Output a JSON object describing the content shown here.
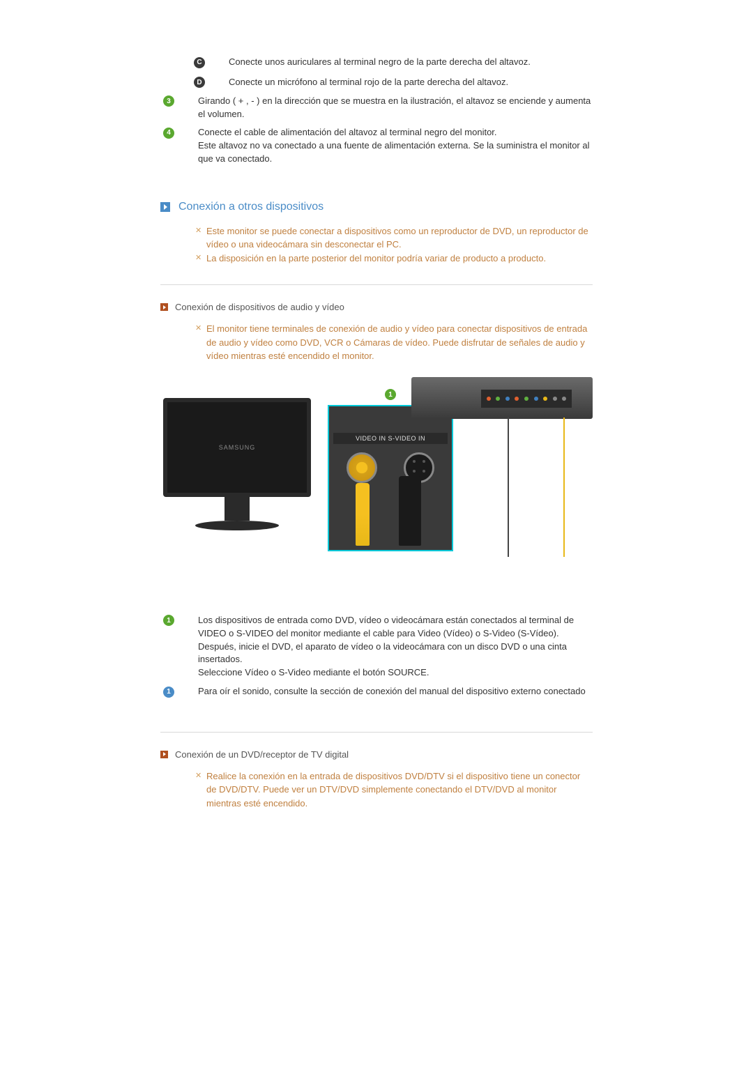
{
  "top_items": [
    {
      "bullet_type": "letter",
      "bullet_label": "C",
      "bullet_bg": "#3a3a3a",
      "text": "Conecte unos auriculares al terminal negro de la parte derecha del altavoz."
    },
    {
      "bullet_type": "letter",
      "bullet_label": "D",
      "bullet_bg": "#3a3a3a",
      "text": "Conecte un micrófono al terminal rojo de la parte derecha del altavoz."
    },
    {
      "bullet_type": "number",
      "bullet_label": "3",
      "bullet_bg": "#5aa82f",
      "text": "Girando ( + , - ) en la dirección que se muestra en la ilustración, el altavoz se enciende y aumenta el volumen."
    },
    {
      "bullet_type": "number",
      "bullet_label": "4",
      "bullet_bg": "#5aa82f",
      "text": "Conecte el cable de alimentación del altavoz al terminal negro del monitor.\nEste altavoz no va conectado a una fuente de alimentación externa. Se la suministra el monitor al que va conectado."
    }
  ],
  "section_heading": "Conexión a otros dispositivos",
  "section_notes": [
    "Este monitor se puede conectar a dispositivos como un reproductor de DVD, un reproductor de vídeo o una videocámara sin desconectar el PC.",
    "La disposición en la parte posterior del monitor podría variar de producto a producto."
  ],
  "subsection1_title": "Conexión de dispositivos de audio y vídeo",
  "subsection1_notes": [
    "El monitor tiene terminales de conexión de audio y vídeo para conectar dispositivos de entrada de audio y vídeo como DVD, VCR o Cámaras de vídeo. Puede disfrutar de señales de audio y vídeo mientras esté encendido el monitor."
  ],
  "figure": {
    "monitor_brand": "SAMSUNG",
    "panel_label_bullet": "1",
    "panel_header": "VIDEO IN  S-VIDEO IN",
    "dvd_dot_colors": [
      "#e06030",
      "#60b040",
      "#4080c0",
      "#e06030",
      "#60b040",
      "#4080c0",
      "#e8b818",
      "#888888",
      "#888888"
    ]
  },
  "after_figure_items": [
    {
      "bullet_label": "1",
      "bullet_bg": "#5aa82f",
      "text": "Los dispositivos de entrada como DVD, vídeo o videocámara están conectados al terminal de VIDEO o S-VIDEO del monitor mediante el cable para Video (Vídeo) o S-Video (S-Vídeo). Después, inicie el DVD, el aparato de vídeo o la videocámara con un disco DVD o una cinta insertados.\nSeleccione Vídeo o S-Video mediante el botón SOURCE."
    },
    {
      "bullet_label": "1",
      "bullet_bg": "#4a8cc7",
      "text": "Para oír el sonido, consulte la sección de conexión del manual del dispositivo externo conectado"
    }
  ],
  "subsection2_title": "Conexión de un DVD/receptor de TV digital",
  "subsection2_notes": [
    "Realice la conexión en la entrada de dispositivos DVD/DTV si el dispositivo tiene un conector de DVD/DTV. Puede ver un DTV/DVD simplemente conectando el DTV/DVD al monitor mientras esté encendido."
  ],
  "colors": {
    "heading_blue": "#4a8cc7",
    "note_orange": "#c08040",
    "sub_arrow_bg": "#b05020",
    "hr": "#d8d8d8",
    "body_text": "#333333"
  }
}
